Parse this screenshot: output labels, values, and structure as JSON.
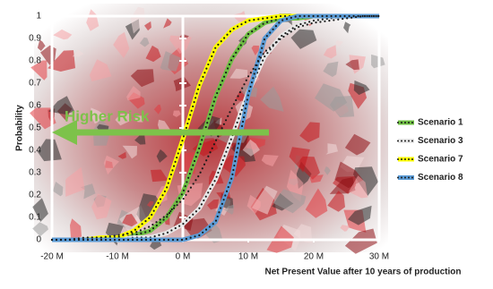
{
  "chart_data": {
    "type": "line",
    "x_label": "Net Present Value after 10 years of production",
    "y_label": "Probability",
    "annotation": "Higher Risk",
    "x": [
      -20,
      -17.5,
      -15,
      -12.5,
      -10,
      -7.5,
      -5,
      -2.5,
      0,
      2.5,
      5,
      7.5,
      10,
      12.5,
      15,
      17.5,
      20,
      22.5,
      25,
      27.5,
      30
    ],
    "series": [
      {
        "name": "Scenario 1",
        "color": "#6fbf44",
        "dots": "#1a1a1a",
        "values": [
          0,
          0,
          0,
          0,
          0.01,
          0.02,
          0.04,
          0.1,
          0.21,
          0.41,
          0.64,
          0.81,
          0.92,
          0.97,
          0.99,
          0.99,
          1,
          1,
          1,
          1,
          1
        ]
      },
      {
        "name": "Scenario 3",
        "color": "#e8e8e8",
        "dots": "#1a1a1a",
        "values": [
          0,
          0,
          0,
          0,
          0,
          0.01,
          0.01,
          0.03,
          0.07,
          0.14,
          0.27,
          0.46,
          0.66,
          0.82,
          0.91,
          0.96,
          0.98,
          0.99,
          1,
          1,
          1
        ]
      },
      {
        "name": "Scenario 7",
        "color": "#ffff00",
        "dots": "#1a1a1a",
        "values": [
          0,
          0,
          0,
          0.01,
          0.01,
          0.04,
          0.1,
          0.23,
          0.45,
          0.69,
          0.86,
          0.94,
          0.98,
          0.99,
          1,
          1,
          1,
          1,
          1,
          1,
          1
        ]
      },
      {
        "name": "Scenario 8",
        "color": "#5b9bd5",
        "dots": "#1a1a1a",
        "values": [
          0,
          0,
          0,
          0,
          0,
          0,
          0,
          0,
          0,
          0.02,
          0.08,
          0.28,
          0.65,
          0.9,
          0.98,
          1,
          1,
          1,
          1,
          1,
          1
        ]
      },
      {
        "dots": "#1a1a1a",
        "values": [
          0,
          0,
          0.01,
          0.01,
          0.02,
          0.03,
          0.06,
          0.11,
          0.18,
          0.29,
          0.44,
          0.59,
          0.73,
          0.84,
          0.9,
          0.95,
          0.97,
          0.98,
          0.99,
          1,
          1
        ]
      }
    ],
    "xlim": [
      -20,
      30
    ],
    "ylim": [
      0,
      1
    ],
    "xticks": [
      {
        "value": -20,
        "label": "-20 M"
      },
      {
        "value": -10,
        "label": "-10 M"
      },
      {
        "value": 0,
        "label": "0 M"
      },
      {
        "value": 10,
        "label": "10 M"
      },
      {
        "value": 20,
        "label": "20 M"
      },
      {
        "value": 30,
        "label": "30 M"
      }
    ],
    "yticks": [
      0,
      0.1,
      0.2,
      0.3,
      0.4,
      0.5,
      0.6,
      0.7,
      0.8,
      0.9,
      1
    ],
    "legend": "right"
  }
}
